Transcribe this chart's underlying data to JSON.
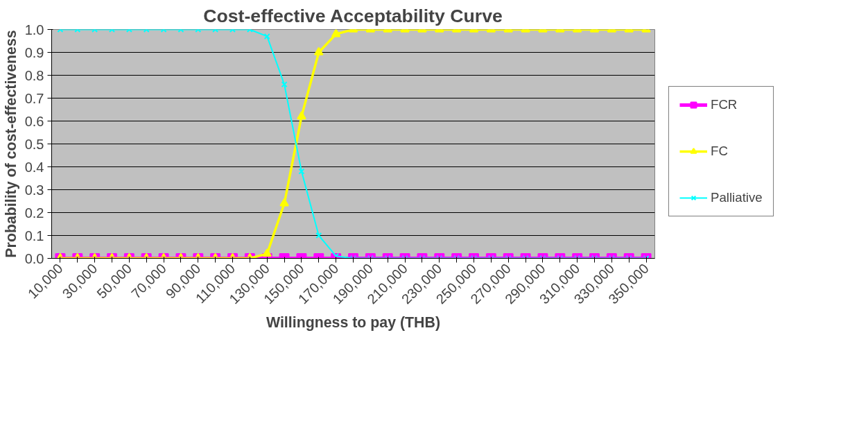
{
  "chart_data": {
    "type": "line",
    "title": "Cost-effective Acceptability Curve",
    "xlabel": "Willingness to pay (THB)",
    "ylabel": "Probability of cost-effectiveness",
    "categories": [
      "10,000",
      null,
      "30,000",
      null,
      "50,000",
      null,
      "70,000",
      null,
      "90,000",
      null,
      "110,000",
      null,
      "130,000",
      null,
      "150,000",
      null,
      "170,000",
      null,
      "190,000",
      null,
      "210,000",
      null,
      "230,000",
      null,
      "250,000",
      null,
      "270,000",
      null,
      "290,000",
      null,
      "310,000",
      null,
      "330,000",
      null,
      "350,000"
    ],
    "series": [
      {
        "name": "FCR",
        "color": "#ff00ff",
        "marker": "square",
        "values": [
          0,
          0,
          0,
          0,
          0,
          0,
          0,
          0,
          0,
          0,
          0,
          0,
          0,
          0,
          0,
          0,
          0,
          0,
          0,
          0,
          0,
          0,
          0,
          0,
          0,
          0,
          0,
          0,
          0,
          0,
          0,
          0,
          0,
          0,
          0
        ]
      },
      {
        "name": "FC",
        "color": "#ffff00",
        "marker": "triangle",
        "values": [
          0,
          0,
          0,
          0,
          0,
          0,
          0,
          0,
          0,
          0,
          0,
          0,
          0.02,
          0.24,
          0.62,
          0.9,
          0.98,
          1,
          1,
          1,
          1,
          1,
          1,
          1,
          1,
          1,
          1,
          1,
          1,
          1,
          1,
          1,
          1,
          1,
          1
        ]
      },
      {
        "name": "Palliative",
        "color": "#00ffff",
        "marker": "cross",
        "values": [
          1,
          1,
          1,
          1,
          1,
          1,
          1,
          1,
          1,
          1,
          1,
          1,
          0.97,
          0.76,
          0.38,
          0.1,
          0.01,
          0,
          0,
          0,
          0,
          0,
          0,
          0,
          0,
          0,
          0,
          0,
          0,
          0,
          0,
          0,
          0,
          0,
          0
        ]
      }
    ],
    "ylim": [
      0,
      1
    ],
    "yticks": [
      {
        "value": 0,
        "label": "0.0"
      },
      {
        "value": 0.1,
        "label": "0.1"
      },
      {
        "value": 0.2,
        "label": "0.2"
      },
      {
        "value": 0.3,
        "label": "0.3"
      },
      {
        "value": 0.4,
        "label": "0.4"
      },
      {
        "value": 0.5,
        "label": "0.5"
      },
      {
        "value": 0.6,
        "label": "0.6"
      },
      {
        "value": 0.7,
        "label": "0.7"
      },
      {
        "value": 0.8,
        "label": "0.8"
      },
      {
        "value": 0.9,
        "label": "0.9"
      },
      {
        "value": 1,
        "label": "1.0"
      }
    ],
    "grid": "y",
    "legend": "right",
    "line_style": "solid"
  }
}
